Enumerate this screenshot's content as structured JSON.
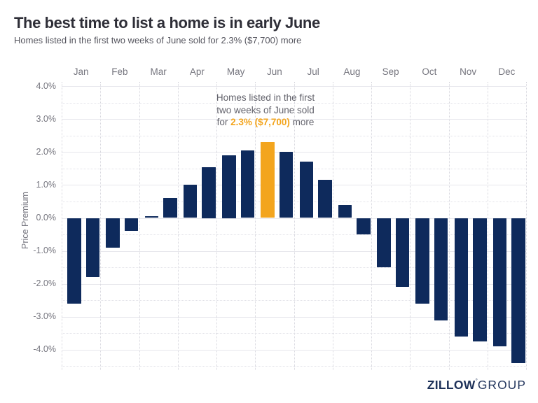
{
  "header": {
    "title": "The best time to list a home is in early June",
    "subtitle": "Homes listed in the first two weeks of June sold for 2.3% ($7,700) more"
  },
  "annotation": {
    "line1": "Homes listed in the first",
    "line2": "two weeks of June sold",
    "line3_prefix": "for ",
    "line3_highlight": "2.3% ($7,700)",
    "line3_suffix": " more"
  },
  "logo": {
    "bold": "ZILLOW",
    "trademark": "°",
    "light": "GROUP"
  },
  "chart_data": {
    "type": "bar",
    "title": "The best time to list a home is in early June",
    "subtitle": "Homes listed in the first two weeks of June sold for 2.3% ($7,700) more",
    "xlabel": "",
    "ylabel": "Price Premium",
    "months": [
      "Jan",
      "Feb",
      "Mar",
      "Apr",
      "May",
      "Jun",
      "Jul",
      "Aug",
      "Sep",
      "Oct",
      "Nov",
      "Dec"
    ],
    "categories": [
      "Jan first half",
      "Jan second half",
      "Feb first half",
      "Feb second half",
      "Mar first half",
      "Mar second half",
      "Apr first half",
      "Apr second half",
      "May first half",
      "May second half",
      "Jun first half",
      "Jun second half",
      "Jul first half",
      "Jul second half",
      "Aug first half",
      "Aug second half",
      "Sep first half",
      "Sep second half",
      "Oct first half",
      "Oct second half",
      "Nov first half",
      "Nov second half",
      "Dec first half",
      "Dec second half"
    ],
    "values": [
      -2.6,
      -1.8,
      -0.9,
      -0.4,
      0.05,
      0.6,
      1.0,
      1.55,
      1.9,
      2.05,
      2.3,
      2.0,
      1.7,
      1.15,
      0.4,
      -0.5,
      -1.5,
      -2.1,
      -2.6,
      -3.1,
      -3.6,
      -3.75,
      -3.9,
      -4.4
    ],
    "value_unit": "%",
    "highlight_index": 10,
    "highlight_value": "2.3%",
    "highlight_dollar": "$7,700",
    "y_ticks": [
      4,
      3,
      2,
      1,
      0,
      -1,
      -2,
      -3,
      -4
    ],
    "ylim": [
      -4.62,
      4.13
    ],
    "grid": true,
    "legend": false,
    "bar_color": "#0e2a5c",
    "highlight_color": "#f3a51e"
  }
}
